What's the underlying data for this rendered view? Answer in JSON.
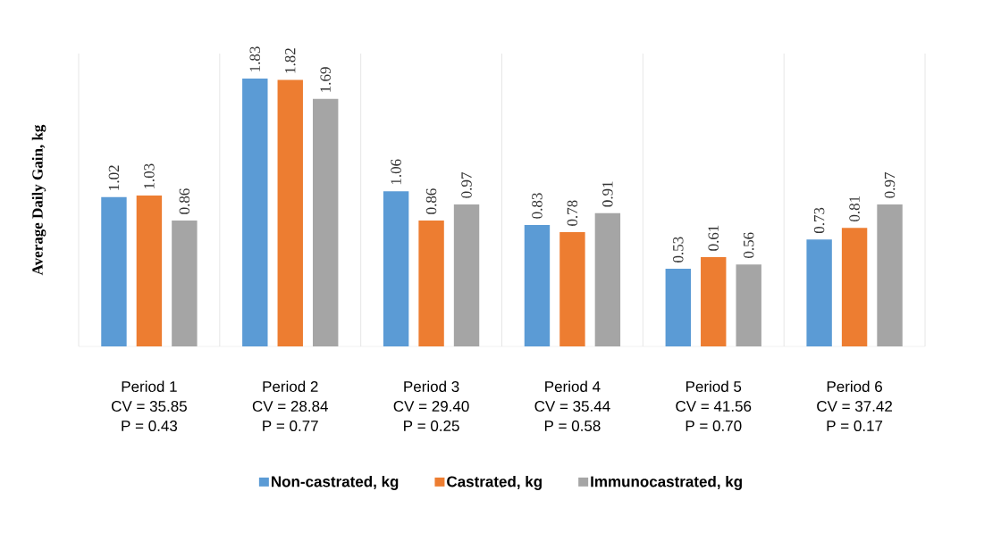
{
  "chart_data": {
    "type": "bar",
    "ylabel": "Average Daily Gain, kg",
    "categories": [
      "Period 1",
      "Period 2",
      "Period 3",
      "Period 4",
      "Period 5",
      "Period 6"
    ],
    "series": [
      {
        "name": "Non-castrated, kg",
        "color": "#5b9bd5",
        "values": [
          1.02,
          1.83,
          1.06,
          0.83,
          0.53,
          0.73
        ]
      },
      {
        "name": "Castrated, kg",
        "color": "#ed7d31",
        "values": [
          1.03,
          1.82,
          0.86,
          0.78,
          0.61,
          0.81
        ]
      },
      {
        "name": "Immunocastrated, kg",
        "color": "#a5a5a5",
        "values": [
          0.86,
          1.69,
          0.97,
          0.91,
          0.56,
          0.97
        ]
      }
    ],
    "ylim": [
      0,
      2
    ],
    "tick_labels": "x",
    "grid": "x",
    "data_labels": true,
    "legend": "bottom",
    "annotations": [
      "CV = 35.85",
      "P = 0.43",
      "CV = 28.84",
      "P = 0.77",
      "CV = 29.40",
      "P = 0.25",
      "CV = 35.44",
      "P = 0.58",
      "CV = 41.56",
      "P = 0.70",
      "CV = 37.42",
      "P = 0.17"
    ]
  }
}
